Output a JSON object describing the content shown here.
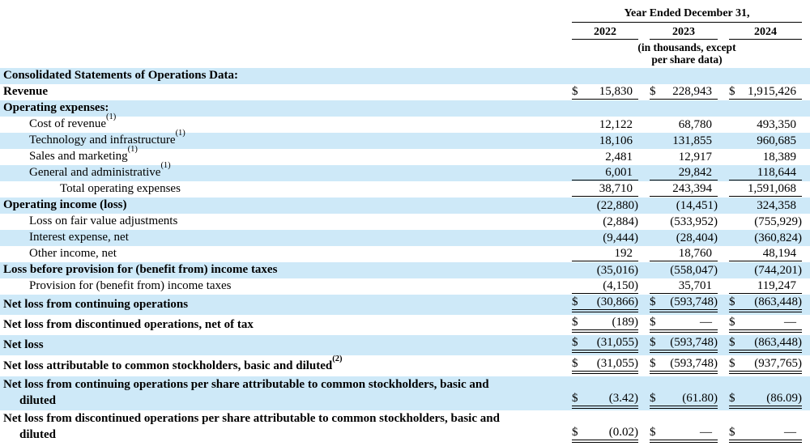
{
  "currency_symbol": "$",
  "colors": {
    "row_highlight": "#cee9f8"
  },
  "header": {
    "period_label": "Year Ended December 31,",
    "years": [
      "2022",
      "2023",
      "2024"
    ],
    "units_note": "(in thousands, except\nper share data)"
  },
  "rows": [
    {
      "label": "Consolidated Statements of Operations Data:"
    },
    {
      "label": "Revenue",
      "values": [
        "15,830",
        "228,943",
        "1,915,426"
      ]
    },
    {
      "label": "Operating expenses:"
    },
    {
      "label": "Cost of revenue",
      "sup": "(1)",
      "values": [
        "12,122",
        "68,780",
        "493,350"
      ]
    },
    {
      "label": "Technology and infrastructure",
      "sup": "(1)",
      "values": [
        "18,106",
        "131,855",
        "960,685"
      ]
    },
    {
      "label": "Sales and marketing",
      "sup": "(1)",
      "values": [
        "2,481",
        "12,917",
        "18,389"
      ]
    },
    {
      "label": "General and administrative",
      "sup": "(1)",
      "values": [
        "6,001",
        "29,842",
        "118,644"
      ]
    },
    {
      "label": "Total operating expenses",
      "values": [
        "38,710",
        "243,394",
        "1,591,068"
      ]
    },
    {
      "label": "Operating income (loss)",
      "values": [
        "(22,880)",
        "(14,451)",
        "324,358"
      ]
    },
    {
      "label": "Loss on fair value adjustments",
      "values": [
        "(2,884)",
        "(533,952)",
        "(755,929)"
      ]
    },
    {
      "label": "Interest expense, net",
      "values": [
        "(9,444)",
        "(28,404)",
        "(360,824)"
      ]
    },
    {
      "label": "Other income, net",
      "values": [
        "192",
        "18,760",
        "48,194"
      ]
    },
    {
      "label": "Loss before provision for (benefit from) income taxes",
      "values": [
        "(35,016)",
        "(558,047)",
        "(744,201)"
      ]
    },
    {
      "label": "Provision for (benefit from) income taxes",
      "values": [
        "(4,150)",
        "35,701",
        "119,247"
      ]
    },
    {
      "label": "Net loss from continuing operations",
      "values": [
        "(30,866)",
        "(593,748)",
        "(863,448)"
      ]
    },
    {
      "label": "Net loss from discontinued operations, net of tax",
      "values": [
        "(189)",
        "—",
        "—"
      ]
    },
    {
      "label": "Net loss",
      "values": [
        "(31,055)",
        "(593,748)",
        "(863,448)"
      ]
    },
    {
      "label": "Net loss attributable to common stockholders, basic and diluted",
      "sup": "(2)",
      "values": [
        "(31,055)",
        "(593,748)",
        "(937,765)"
      ]
    },
    {
      "label": "Net loss from continuing operations per share attributable to common stockholders, basic and\ndiluted",
      "values": [
        "(3.42)",
        "(61.80)",
        "(86.09)"
      ]
    },
    {
      "label": "Net loss from discontinued operations per share attributable to common stockholders, basic and\ndiluted",
      "values": [
        "(0.02)",
        "—",
        "—"
      ]
    }
  ]
}
